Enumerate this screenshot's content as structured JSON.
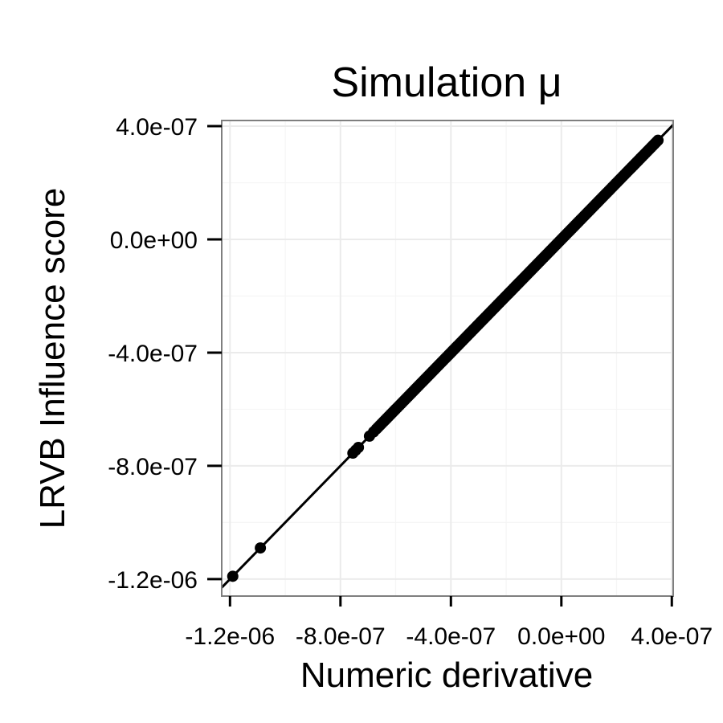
{
  "chart_data": {
    "type": "scatter",
    "title": "Simulation μ",
    "xlabel": "Numeric derivative",
    "ylabel": "LRVB Influence score",
    "xlim": [
      -1.23e-06,
      4.05e-07
    ],
    "ylim": [
      -1.26e-06,
      4.2e-07
    ],
    "x_ticks": [
      -1.2e-06,
      -8e-07,
      -4e-07,
      0.0,
      4e-07
    ],
    "x_tick_labels": [
      "-1.2e-06",
      "-8.0e-07",
      "-4.0e-07",
      "0.0e+00",
      "4.0e-07"
    ],
    "y_ticks": [
      -1.2e-06,
      -8e-07,
      -4e-07,
      0.0,
      4e-07
    ],
    "y_tick_labels": [
      "-1.2e-06",
      "-8.0e-07",
      "-4.0e-07",
      "0.0e+00",
      "4.0e-07"
    ],
    "reference_line": {
      "slope": 1,
      "intercept": 0
    },
    "grid": true,
    "point_color": "#000000",
    "points": [
      {
        "x": -1.19e-06,
        "y": -1.19e-06
      },
      {
        "x": -1.09e-06,
        "y": -1.09e-06
      },
      {
        "x": -7.55e-07,
        "y": -7.55e-07
      },
      {
        "x": -7.45e-07,
        "y": -7.45e-07
      },
      {
        "x": -7.35e-07,
        "y": -7.35e-07
      },
      {
        "x": -6.95e-07,
        "y": -6.95e-07
      },
      {
        "x": -6.8e-07,
        "y": -6.8e-07
      }
    ],
    "dense_range": {
      "x_from": -6.7e-07,
      "x_to": 3.5e-07
    }
  }
}
